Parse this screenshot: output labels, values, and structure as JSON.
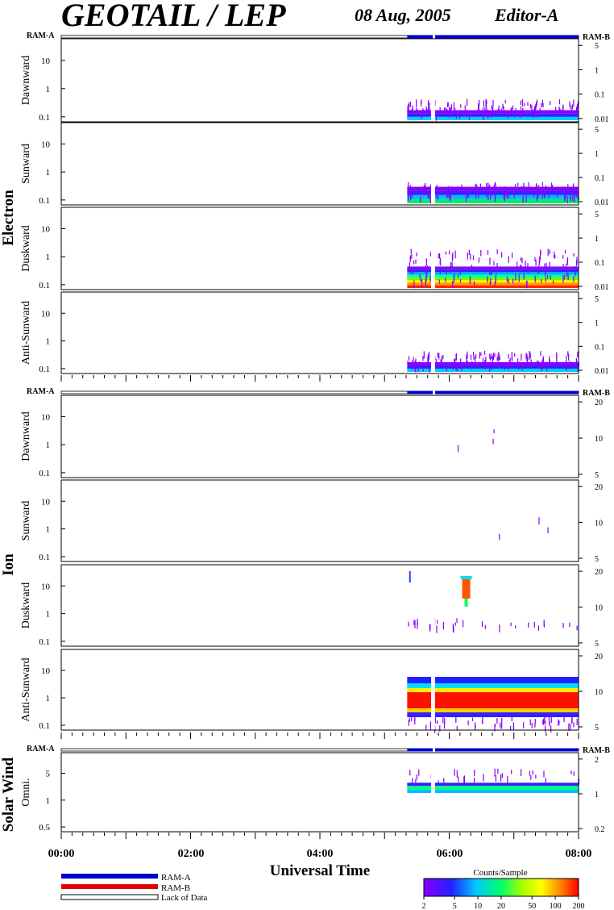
{
  "header": {
    "title": "GEOTAIL / LEP",
    "date": "08 Aug, 2005",
    "editor": "Editor-A"
  },
  "colors": {
    "ram_a": "#0000cc",
    "ram_b": "#e00000",
    "frame": "#000000"
  },
  "legend": {
    "ram_a": "RAM-A",
    "ram_b": "RAM-B",
    "lack": "Lack of Data"
  },
  "colorbar": {
    "title": "Counts/Sample",
    "ticks": [
      "2",
      "5",
      "10",
      "20",
      "50",
      "100",
      "200"
    ]
  },
  "chart_data": {
    "type": "heatmap",
    "xlabel": "Universal Time",
    "x_ticks": [
      "00:00",
      "02:00",
      "04:00",
      "06:00",
      "08:00"
    ],
    "x_range_hours": [
      0,
      8
    ],
    "groups": [
      {
        "name": "Electron",
        "ram_left": "RAM-A",
        "ram_right": "RAM-B",
        "panels": [
          {
            "name": "Dawnward",
            "left_ticks": [
              "10",
              "1",
              "0.1"
            ],
            "right_ticks": [
              "5",
              "1",
              "0.1",
              "0.01"
            ],
            "data_start_h": 5.35,
            "intensity": "low"
          },
          {
            "name": "Sunward",
            "left_ticks": [
              "10",
              "1",
              "0.1"
            ],
            "right_ticks": [
              "5",
              "1",
              "0.1",
              "0.01"
            ],
            "data_start_h": 5.35,
            "intensity": "low-mid"
          },
          {
            "name": "Duskward",
            "left_ticks": [
              "10",
              "1",
              "0.1"
            ],
            "right_ticks": [
              "5",
              "1",
              "0.1",
              "0.01"
            ],
            "data_start_h": 5.35,
            "intensity": "high"
          },
          {
            "name": "Anti-Sunward",
            "left_ticks": [
              "10",
              "1",
              "0.1"
            ],
            "right_ticks": [
              "5",
              "1",
              "0.1",
              "0.01"
            ],
            "data_start_h": 5.35,
            "intensity": "low"
          }
        ]
      },
      {
        "name": "Ion",
        "ram_left": "RAM-A",
        "ram_right": "RAM-B",
        "panels": [
          {
            "name": "Dawnward",
            "left_ticks": [
              "10",
              "1",
              "0.1"
            ],
            "right_ticks": [
              "20",
              "10",
              "5"
            ],
            "data_start_h": 5.35,
            "intensity": "sparse"
          },
          {
            "name": "Sunward",
            "left_ticks": [
              "10",
              "1",
              "0.1"
            ],
            "right_ticks": [
              "20",
              "10",
              "5"
            ],
            "data_start_h": 5.35,
            "intensity": "sparse"
          },
          {
            "name": "Duskward",
            "left_ticks": [
              "10",
              "1",
              "0.1"
            ],
            "right_ticks": [
              "20",
              "10",
              "5"
            ],
            "data_start_h": 5.35,
            "intensity": "burst"
          },
          {
            "name": "Anti-Sunward",
            "left_ticks": [
              "10",
              "1",
              "0.1"
            ],
            "right_ticks": [
              "20",
              "10",
              "5"
            ],
            "data_start_h": 5.35,
            "intensity": "band"
          }
        ]
      },
      {
        "name": "Solar Wind",
        "ram_left": "RAM-A",
        "ram_right": "RAM-B",
        "panels": [
          {
            "name": "Omni.",
            "left_ticks": [
              "5",
              "1",
              "0.5"
            ],
            "right_ticks": [
              "2",
              "1",
              "0.2"
            ],
            "data_start_h": 5.35,
            "intensity": "sw"
          }
        ]
      }
    ]
  }
}
